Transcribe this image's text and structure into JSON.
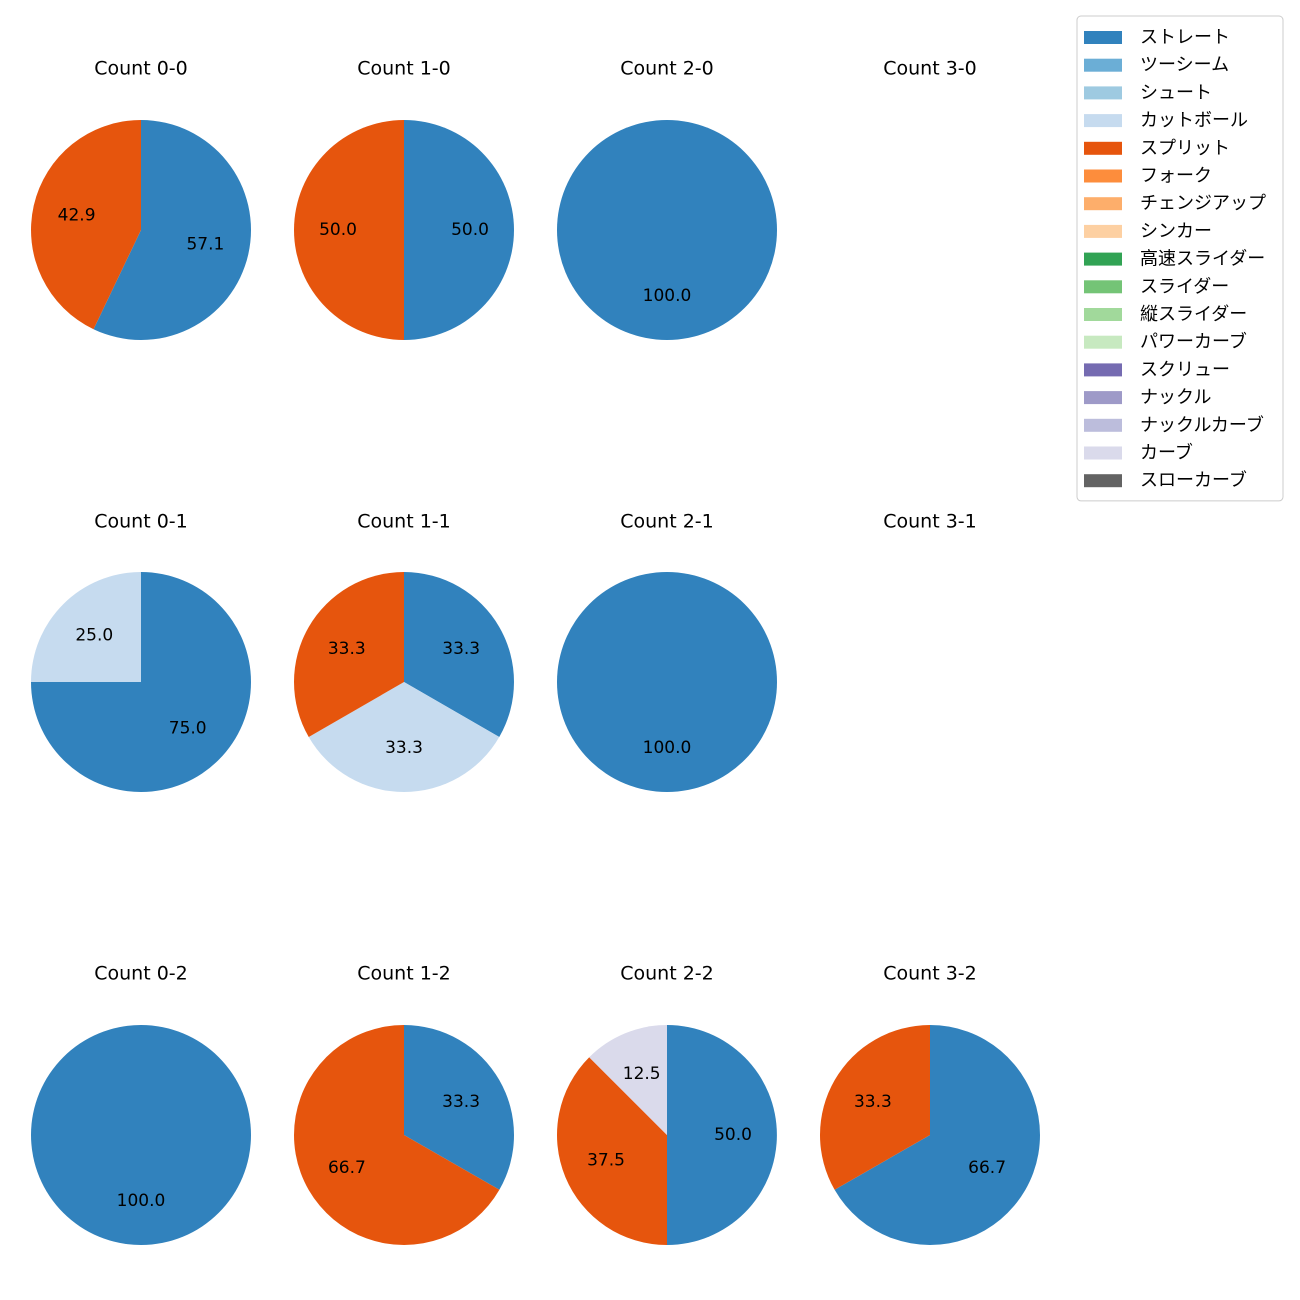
{
  "chart_data": {
    "type": "pie",
    "legend": {
      "placement": "top-right",
      "entries": [
        {
          "name": "ストレート",
          "color": "#3182bd"
        },
        {
          "name": "ツーシーム",
          "color": "#6baed6"
        },
        {
          "name": "シュート",
          "color": "#9ecae1"
        },
        {
          "name": "カットボール",
          "color": "#c6dbef"
        },
        {
          "name": "スプリット",
          "color": "#e6550d"
        },
        {
          "name": "フォーク",
          "color": "#fd8d3c"
        },
        {
          "name": "チェンジアップ",
          "color": "#fdae6b"
        },
        {
          "name": "シンカー",
          "color": "#fdd0a2"
        },
        {
          "name": "高速スライダー",
          "color": "#31a354"
        },
        {
          "name": "スライダー",
          "color": "#74c476"
        },
        {
          "name": "縦スライダー",
          "color": "#a1d99b"
        },
        {
          "name": "パワーカーブ",
          "color": "#c7e9c0"
        },
        {
          "name": "スクリュー",
          "color": "#756bb1"
        },
        {
          "name": "ナックル",
          "color": "#9e9ac8"
        },
        {
          "name": "ナックルカーブ",
          "color": "#bcbddc"
        },
        {
          "name": "カーブ",
          "color": "#dadaeb"
        },
        {
          "name": "スローカーブ",
          "color": "#636363"
        }
      ]
    },
    "pies": [
      {
        "title": "Count 0-0",
        "slices": [
          {
            "pitch": "ストレート",
            "value": 57.1,
            "label": "57.1"
          },
          {
            "pitch": "スプリット",
            "value": 42.9,
            "label": "42.9"
          }
        ]
      },
      {
        "title": "Count 1-0",
        "slices": [
          {
            "pitch": "ストレート",
            "value": 50.0,
            "label": "50.0"
          },
          {
            "pitch": "スプリット",
            "value": 50.0,
            "label": "50.0"
          }
        ]
      },
      {
        "title": "Count 2-0",
        "slices": [
          {
            "pitch": "ストレート",
            "value": 100.0,
            "label": "100.0"
          }
        ]
      },
      {
        "title": "Count 3-0",
        "slices": []
      },
      {
        "title": "Count 0-1",
        "slices": [
          {
            "pitch": "ストレート",
            "value": 75.0,
            "label": "75.0"
          },
          {
            "pitch": "カットボール",
            "value": 25.0,
            "label": "25.0"
          }
        ]
      },
      {
        "title": "Count 1-1",
        "slices": [
          {
            "pitch": "ストレート",
            "value": 33.3,
            "label": "33.3"
          },
          {
            "pitch": "カットボール",
            "value": 33.3,
            "label": "33.3"
          },
          {
            "pitch": "スプリット",
            "value": 33.3,
            "label": "33.3"
          }
        ]
      },
      {
        "title": "Count 2-1",
        "slices": [
          {
            "pitch": "ストレート",
            "value": 100.0,
            "label": "100.0"
          }
        ]
      },
      {
        "title": "Count 3-1",
        "slices": []
      },
      {
        "title": "Count 0-2",
        "slices": [
          {
            "pitch": "ストレート",
            "value": 100.0,
            "label": "100.0"
          }
        ]
      },
      {
        "title": "Count 1-2",
        "slices": [
          {
            "pitch": "ストレート",
            "value": 33.3,
            "label": "33.3"
          },
          {
            "pitch": "スプリット",
            "value": 66.7,
            "label": "66.7"
          }
        ]
      },
      {
        "title": "Count 2-2",
        "slices": [
          {
            "pitch": "ストレート",
            "value": 50.0,
            "label": "50.0"
          },
          {
            "pitch": "スプリット",
            "value": 37.5,
            "label": "37.5"
          },
          {
            "pitch": "カーブ",
            "value": 12.5,
            "label": "12.5"
          }
        ]
      },
      {
        "title": "Count 3-2",
        "slices": [
          {
            "pitch": "ストレート",
            "value": 66.7,
            "label": "66.7"
          },
          {
            "pitch": "スプリット",
            "value": 33.3,
            "label": "33.3"
          }
        ]
      }
    ]
  }
}
